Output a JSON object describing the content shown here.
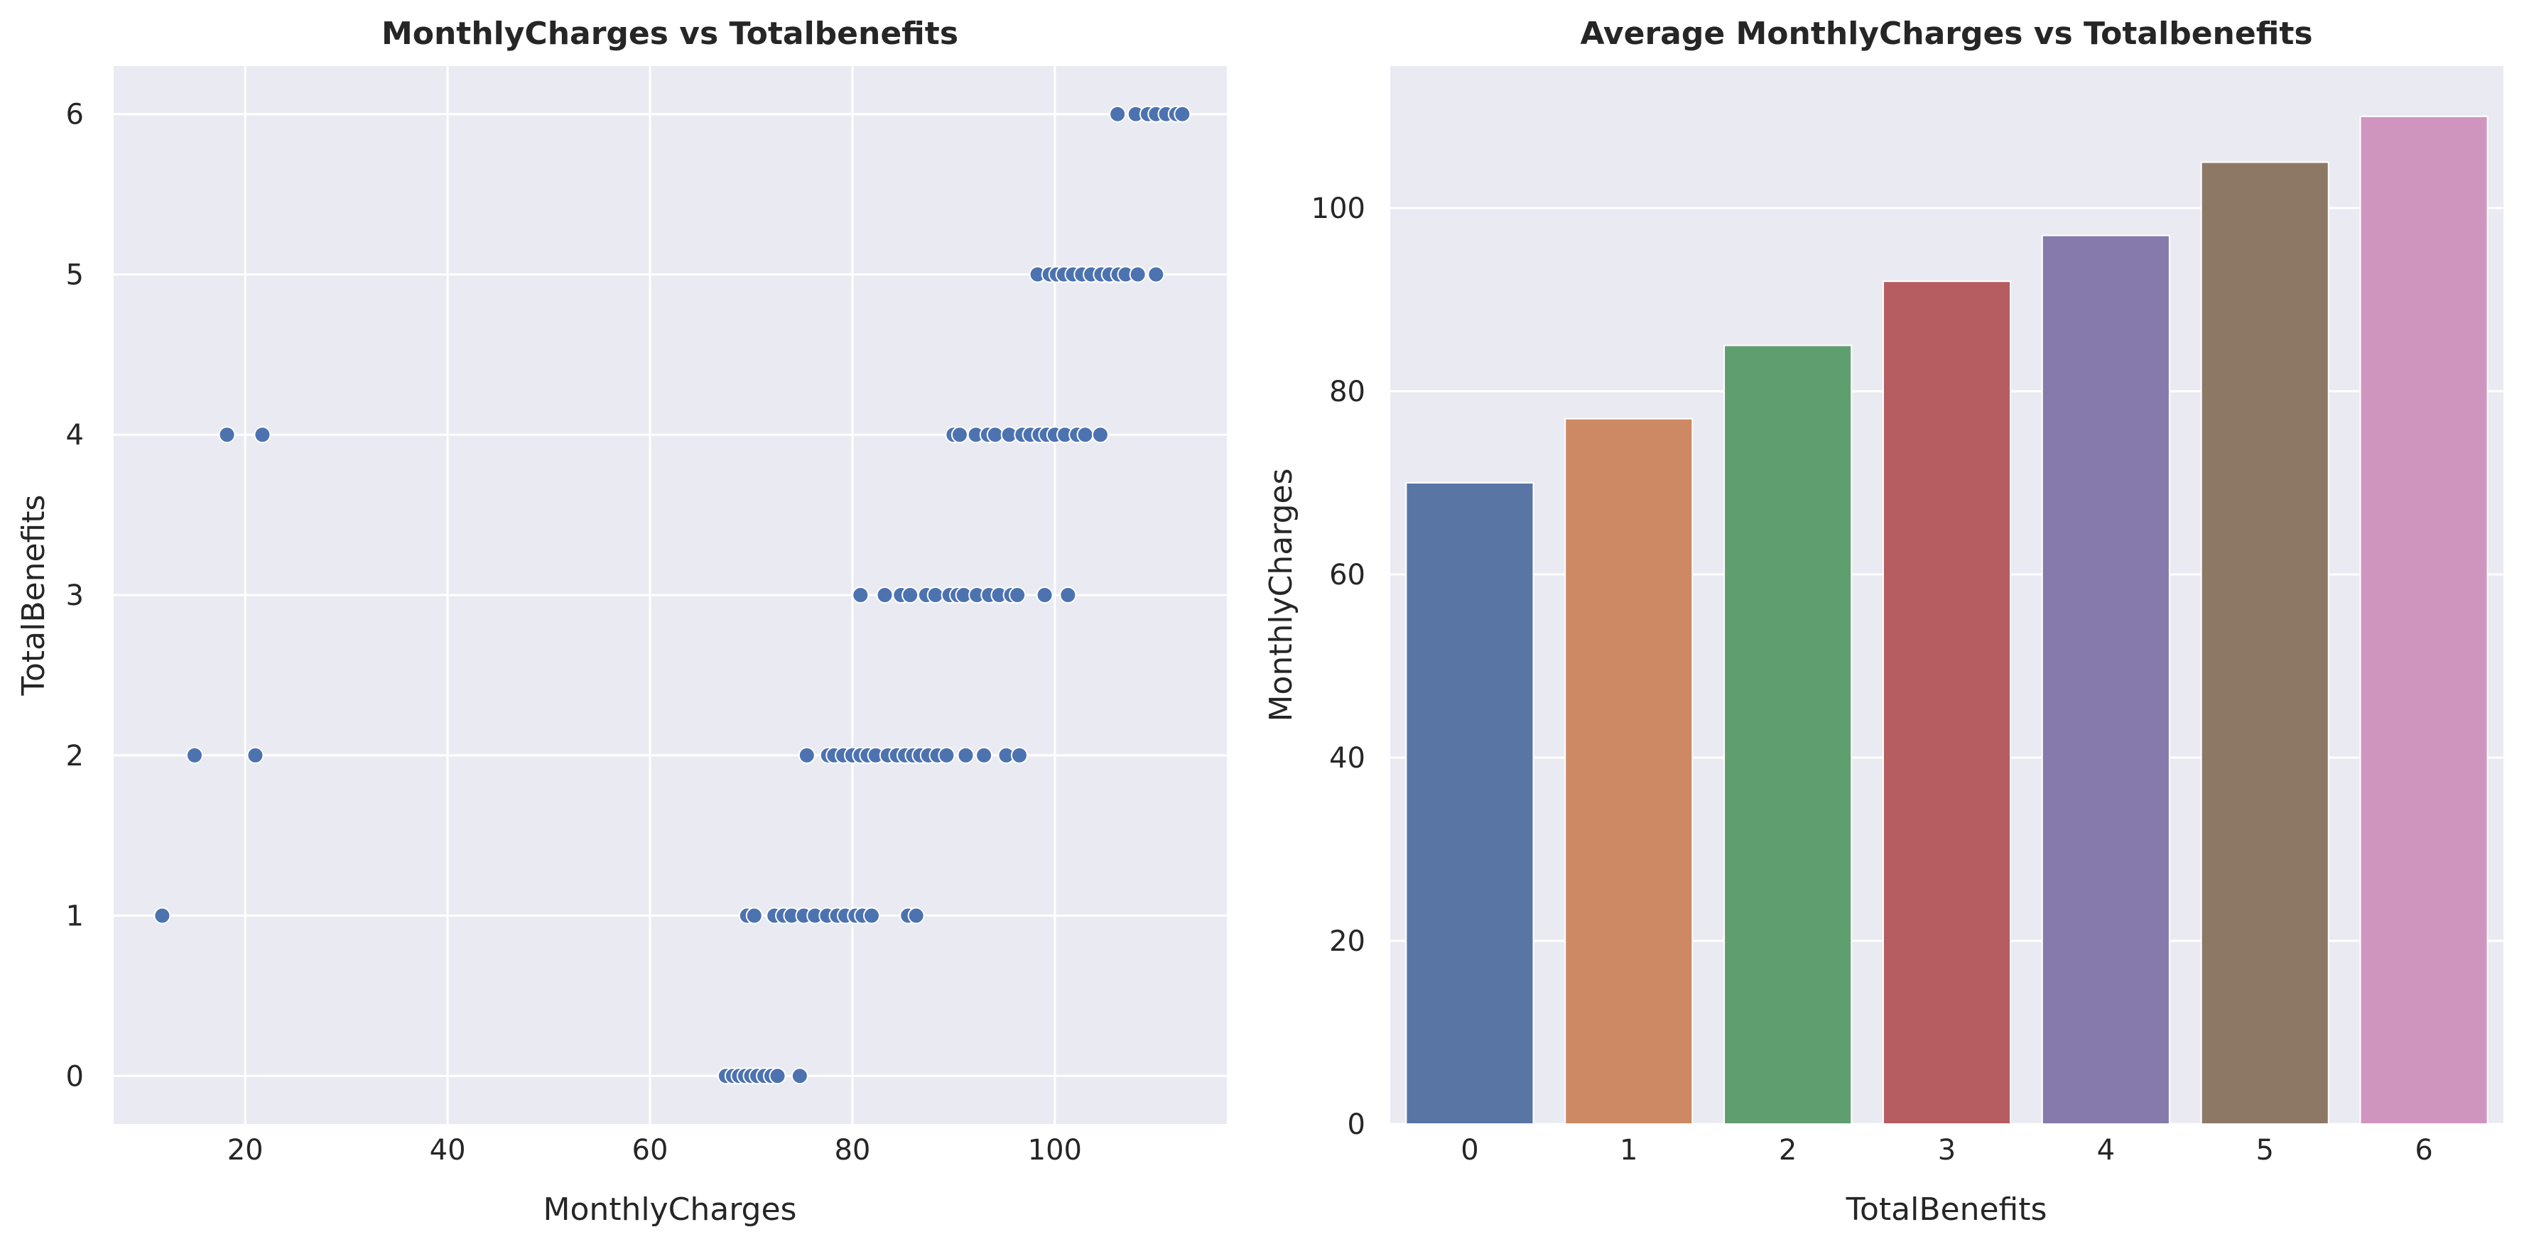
{
  "chart_data": [
    {
      "type": "scatter",
      "title": "MonthlyCharges vs Totalbenefits",
      "xlabel": "MonthlyCharges",
      "ylabel": "TotalBenefits",
      "xlim": [
        7,
        117
      ],
      "ylim": [
        -0.3,
        6.3
      ],
      "xticks": [
        20,
        40,
        60,
        80,
        100
      ],
      "yticks": [
        0,
        1,
        2,
        3,
        4,
        5,
        6
      ],
      "grid": true,
      "point_color": "#4c72b0",
      "points": [
        [
          67.5,
          0
        ],
        [
          68.2,
          0
        ],
        [
          68.8,
          0
        ],
        [
          69.4,
          0
        ],
        [
          70.0,
          0
        ],
        [
          70.6,
          0
        ],
        [
          71.3,
          0
        ],
        [
          72.0,
          0
        ],
        [
          72.6,
          0
        ],
        [
          74.8,
          0
        ],
        [
          11.8,
          1
        ],
        [
          69.6,
          1
        ],
        [
          70.3,
          1
        ],
        [
          72.3,
          1
        ],
        [
          73.2,
          1
        ],
        [
          74.0,
          1
        ],
        [
          75.2,
          1
        ],
        [
          76.3,
          1
        ],
        [
          77.5,
          1
        ],
        [
          78.5,
          1
        ],
        [
          79.3,
          1
        ],
        [
          80.3,
          1
        ],
        [
          81.0,
          1
        ],
        [
          81.9,
          1
        ],
        [
          85.5,
          1
        ],
        [
          86.3,
          1
        ],
        [
          15.0,
          2
        ],
        [
          21.0,
          2
        ],
        [
          75.5,
          2
        ],
        [
          77.6,
          2
        ],
        [
          78.2,
          2
        ],
        [
          79.1,
          2
        ],
        [
          80.0,
          2
        ],
        [
          80.8,
          2
        ],
        [
          81.5,
          2
        ],
        [
          82.3,
          2
        ],
        [
          83.5,
          2
        ],
        [
          84.4,
          2
        ],
        [
          85.2,
          2
        ],
        [
          86.0,
          2
        ],
        [
          86.7,
          2
        ],
        [
          87.5,
          2
        ],
        [
          88.4,
          2
        ],
        [
          89.3,
          2
        ],
        [
          91.2,
          2
        ],
        [
          93.0,
          2
        ],
        [
          95.2,
          2
        ],
        [
          96.5,
          2
        ],
        [
          80.8,
          3
        ],
        [
          83.2,
          3
        ],
        [
          84.8,
          3
        ],
        [
          85.7,
          3
        ],
        [
          87.3,
          3
        ],
        [
          88.2,
          3
        ],
        [
          89.6,
          3
        ],
        [
          90.4,
          3
        ],
        [
          91.0,
          3
        ],
        [
          92.3,
          3
        ],
        [
          93.5,
          3
        ],
        [
          94.5,
          3
        ],
        [
          95.7,
          3
        ],
        [
          96.3,
          3
        ],
        [
          99.0,
          3
        ],
        [
          101.3,
          3
        ],
        [
          18.2,
          4
        ],
        [
          21.7,
          4
        ],
        [
          90.0,
          4
        ],
        [
          90.6,
          4
        ],
        [
          92.2,
          4
        ],
        [
          93.4,
          4
        ],
        [
          94.1,
          4
        ],
        [
          95.5,
          4
        ],
        [
          96.8,
          4
        ],
        [
          97.6,
          4
        ],
        [
          98.5,
          4
        ],
        [
          99.2,
          4
        ],
        [
          100.0,
          4
        ],
        [
          101.0,
          4
        ],
        [
          102.2,
          4
        ],
        [
          103.0,
          4
        ],
        [
          104.5,
          4
        ],
        [
          98.3,
          5
        ],
        [
          99.5,
          5
        ],
        [
          100.2,
          5
        ],
        [
          100.9,
          5
        ],
        [
          101.8,
          5
        ],
        [
          102.7,
          5
        ],
        [
          103.6,
          5
        ],
        [
          104.6,
          5
        ],
        [
          105.4,
          5
        ],
        [
          106.3,
          5
        ],
        [
          107.0,
          5
        ],
        [
          108.2,
          5
        ],
        [
          110.0,
          5
        ],
        [
          106.2,
          6
        ],
        [
          108.0,
          6
        ],
        [
          109.2,
          6
        ],
        [
          110.0,
          6
        ],
        [
          111.0,
          6
        ],
        [
          112.0,
          6
        ],
        [
          112.6,
          6
        ]
      ]
    },
    {
      "type": "bar",
      "title": "Average MonthlyCharges vs Totalbenefits",
      "xlabel": "TotalBenefits",
      "ylabel": "MonthlyCharges",
      "ylim": [
        0,
        115.5
      ],
      "yticks": [
        0,
        20,
        40,
        60,
        80,
        100
      ],
      "grid": true,
      "categories": [
        "0",
        "1",
        "2",
        "3",
        "4",
        "5",
        "6"
      ],
      "values": [
        70,
        77,
        85,
        92,
        97,
        105,
        110
      ],
      "colors": [
        "#5875a4",
        "#cc8963",
        "#5f9e6e",
        "#b55d60",
        "#857aab",
        "#8d7866",
        "#d095bf"
      ]
    }
  ]
}
